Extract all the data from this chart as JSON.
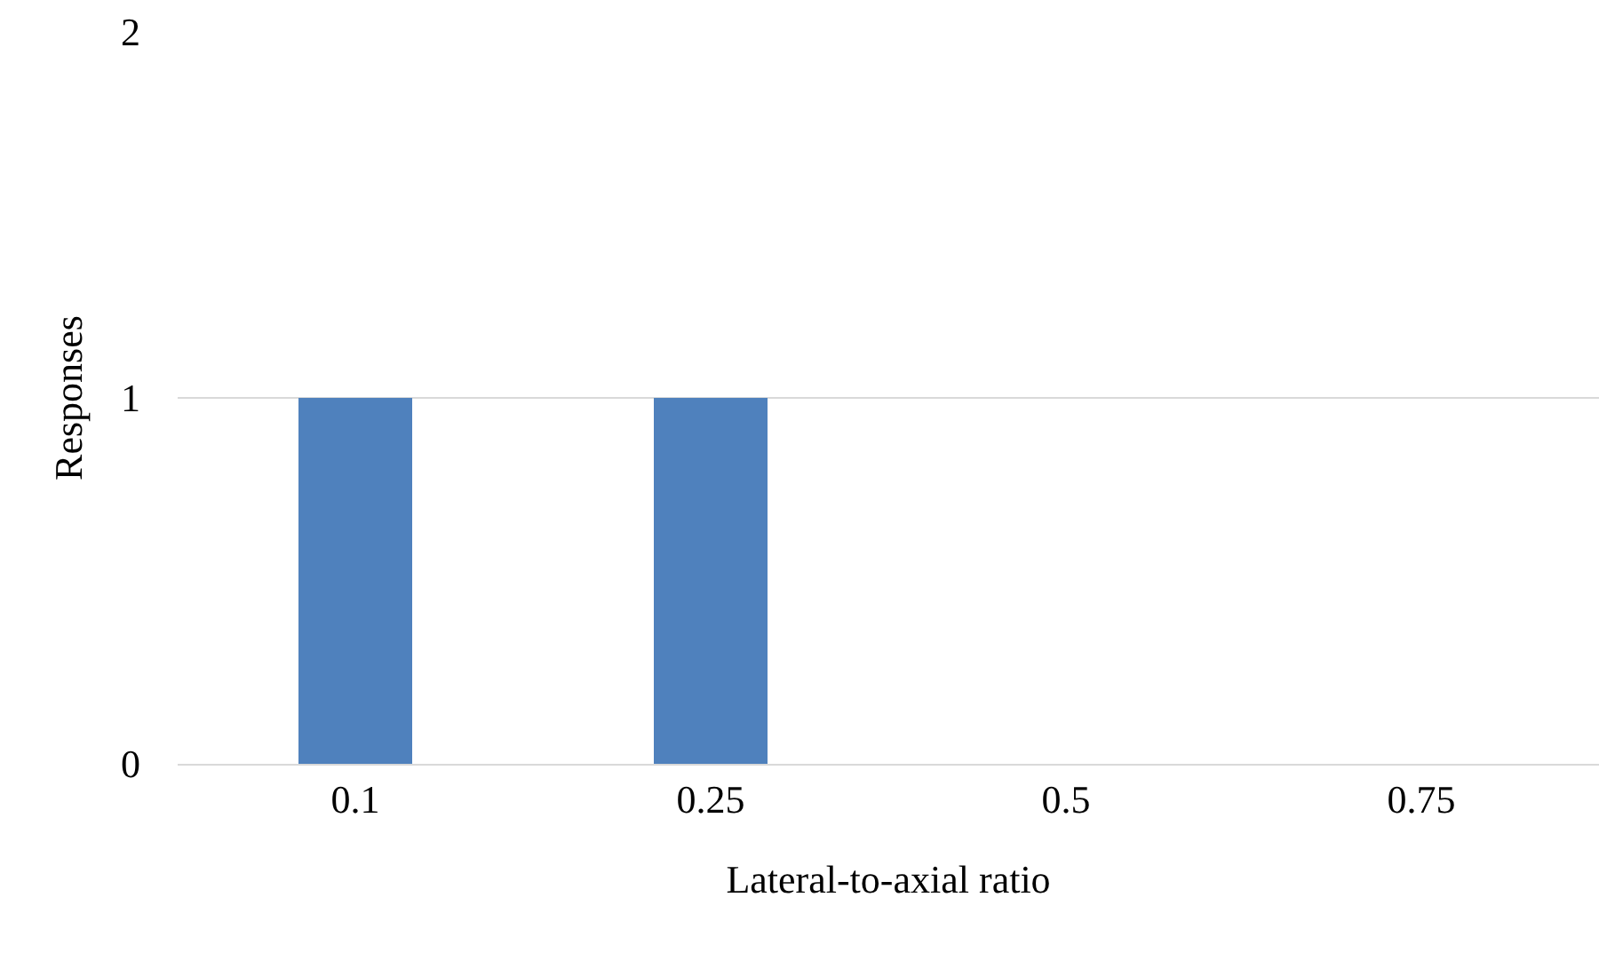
{
  "chart_data": {
    "type": "bar",
    "xlabel": "Lateral-to-axial ratio",
    "ylabel": "Responses",
    "categories": [
      "0.1",
      "0.25",
      "0.5",
      "0.75"
    ],
    "series": [
      {
        "color": "#4f81bd",
        "values": [
          1,
          1,
          0,
          0
        ]
      }
    ],
    "ylim": [
      0,
      2
    ],
    "yticks": [
      0,
      1,
      2
    ],
    "grid": "y",
    "legend": false
  }
}
